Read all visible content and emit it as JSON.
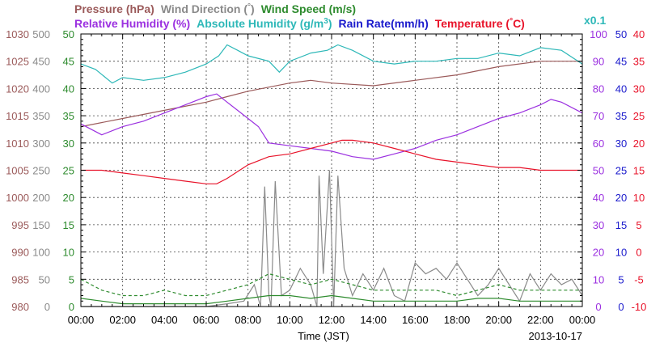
{
  "chart_data": {
    "type": "line",
    "legend": {
      "row1": [
        {
          "text": "Pressure (hPa)",
          "color": "#9b5a5a"
        },
        {
          "text": "Wind Direction (",
          "color": "#8a8a8a"
        },
        {
          "text": "°",
          "color": "#8a8a8a"
        },
        {
          "text": ")",
          "color": "#8a8a8a"
        },
        {
          "text": "Wind Speed (m/s)",
          "color": "#2e8b2e"
        }
      ],
      "row2": [
        {
          "text": "Relative Humidity (%)",
          "color": "#9b30e0"
        },
        {
          "text": "Absolute Humidity (g/m",
          "color": "#2eb8b8"
        },
        {
          "text": "3",
          "color": "#2eb8b8"
        },
        {
          "text": ")",
          "color": "#2eb8b8"
        },
        {
          "text": "Rain Rate(mm/h)",
          "color": "#1a1acc"
        },
        {
          "text": "Temperature (",
          "color": "#e8132a"
        },
        {
          "text": "°",
          "color": "#e8132a"
        },
        {
          "text": "C)",
          "color": "#e8132a"
        }
      ],
      "scale_note": "x0.1"
    },
    "xlabel": "Time (JST)",
    "date": "2013-10-17",
    "x_ticks": [
      "00:00",
      "02:00",
      "04:00",
      "06:00",
      "08:00",
      "10:00",
      "12:00",
      "14:00",
      "16:00",
      "18:00",
      "20:00",
      "22:00",
      "00:00"
    ],
    "axes": [
      {
        "name": "Pressure",
        "color": "#9b5a5a",
        "ticks": [
          "1030",
          "1025",
          "1020",
          "1015",
          "1010",
          "1005",
          "1000",
          "995",
          "990",
          "985",
          "980"
        ],
        "range": [
          980,
          1030
        ]
      },
      {
        "name": "Wind Direction",
        "color": "#8a8a8a",
        "ticks": [
          "500",
          "450",
          "400",
          "350",
          "300",
          "250",
          "200",
          "150",
          "100",
          "50",
          "0"
        ],
        "range": [
          0,
          500
        ]
      },
      {
        "name": "Wind Speed",
        "color": "#2e8b2e",
        "ticks": [
          "50",
          "45",
          "40",
          "35",
          "30",
          "25",
          "20",
          "15",
          "10",
          "5",
          "0"
        ],
        "range": [
          0,
          50
        ]
      },
      {
        "name": "Relative Humidity",
        "color": "#9b30e0",
        "ticks": [
          "100",
          "90",
          "80",
          "70",
          "60",
          "50",
          "40",
          "30",
          "20",
          "10",
          "0"
        ],
        "range": [
          0,
          100
        ]
      },
      {
        "name": "Rain Rate",
        "color": "#1a1acc",
        "ticks": [
          "50",
          "45",
          "40",
          "35",
          "30",
          "25",
          "20",
          "15",
          "10",
          "5",
          "0"
        ],
        "range": [
          0,
          50
        ]
      },
      {
        "name": "Temperature",
        "color": "#e8132a",
        "ticks": [
          "40",
          "35",
          "30",
          "25",
          "20",
          "15",
          "10",
          "5",
          "0",
          "-5",
          "-10"
        ],
        "range": [
          -10,
          40
        ]
      }
    ],
    "grid": true,
    "series": [
      {
        "name": "Pressure",
        "color": "#9b5a5a",
        "x_hours": [
          0,
          2,
          4,
          6,
          7,
          8,
          10,
          11,
          12,
          14,
          16,
          18,
          20,
          22,
          24
        ],
        "y": [
          1013,
          1014.5,
          1016,
          1017.5,
          1018.5,
          1019.5,
          1021,
          1021.5,
          1021,
          1020.5,
          1021.5,
          1022.5,
          1024,
          1025,
          1025
        ]
      },
      {
        "name": "Absolute Humidity",
        "color": "#2eb8b8",
        "x_hours": [
          0,
          0.7,
          1.5,
          2,
          3,
          4,
          5,
          6,
          6.6,
          7,
          7.5,
          8,
          9,
          9.5,
          10,
          11,
          11.8,
          12.3,
          13,
          14,
          15,
          16,
          17,
          18,
          19,
          20,
          21,
          22,
          23,
          24
        ],
        "y": [
          44.5,
          43.5,
          41,
          42,
          41.5,
          42,
          43,
          44.5,
          46,
          48,
          47,
          46,
          45,
          43,
          45,
          46.5,
          47,
          48,
          47,
          45,
          44.5,
          45,
          45,
          45.5,
          45.5,
          46.5,
          46,
          47.5,
          47,
          44.5
        ]
      },
      {
        "name": "Relative Humidity",
        "color": "#9b30e0",
        "x_hours": [
          0,
          1,
          2,
          3,
          4,
          5,
          6,
          6.5,
          7,
          8,
          8.5,
          9,
          10,
          11,
          12,
          13,
          14,
          15,
          16,
          17,
          18,
          19,
          20,
          21,
          22,
          22.5,
          23,
          24
        ],
        "y": [
          67,
          63,
          66,
          68,
          71,
          74,
          77,
          78,
          75,
          69,
          66,
          60,
          59,
          58,
          57,
          55,
          54,
          56,
          58,
          61,
          63,
          66,
          69,
          71,
          74,
          76,
          75,
          71
        ]
      },
      {
        "name": "Temperature",
        "color": "#e8132a",
        "x_hours": [
          0,
          1,
          2,
          3,
          4,
          5,
          6,
          6.5,
          7,
          8,
          9,
          10,
          11,
          12,
          12.5,
          13,
          14,
          15,
          16,
          17,
          18,
          19,
          20,
          21,
          22,
          23,
          24
        ],
        "y": [
          15,
          15,
          14.5,
          14,
          13.5,
          13,
          12.5,
          12.5,
          13.5,
          16,
          17.5,
          18,
          19,
          20,
          20.5,
          20.5,
          20,
          19,
          18,
          17,
          16.5,
          16,
          15.5,
          15.5,
          15,
          15,
          15
        ]
      },
      {
        "name": "Wind Direction",
        "color": "#8a8a8a",
        "x_hours": [
          0,
          2,
          4,
          6,
          7,
          7.8,
          8.3,
          8.6,
          8.8,
          9,
          9.1,
          9.3,
          9.6,
          10,
          10.5,
          11,
          11.3,
          11.4,
          11.6,
          11.9,
          12.1,
          12.3,
          12.6,
          13,
          13.5,
          14,
          14.5,
          15,
          15.5,
          16,
          16.5,
          17,
          17.5,
          18,
          18.5,
          19,
          19.5,
          20,
          20.5,
          21,
          21.5,
          22,
          22.5,
          23,
          23.5,
          24
        ],
        "y": [
          0,
          0,
          0,
          0,
          5,
          10,
          40,
          0,
          220,
          20,
          0,
          230,
          20,
          30,
          70,
          40,
          0,
          240,
          60,
          250,
          0,
          240,
          70,
          20,
          60,
          30,
          70,
          20,
          10,
          80,
          60,
          70,
          50,
          80,
          50,
          20,
          40,
          70,
          40,
          10,
          60,
          30,
          60,
          40,
          50,
          20
        ]
      },
      {
        "name": "Wind Speed (gust)",
        "color": "#2e8b2e",
        "dashed": true,
        "x_hours": [
          0,
          1,
          2,
          3,
          4,
          5,
          6,
          7,
          8,
          9,
          10,
          11,
          12,
          13,
          14,
          15,
          16,
          17,
          18,
          19,
          20,
          21,
          22,
          23,
          24
        ],
        "y": [
          5,
          3,
          2,
          2,
          3,
          2,
          2,
          3,
          4,
          6,
          5,
          4,
          5,
          4,
          3,
          3,
          3,
          3,
          2,
          3,
          4,
          3,
          3,
          3,
          3
        ]
      },
      {
        "name": "Wind Speed",
        "color": "#2e8b2e",
        "x_hours": [
          0,
          1,
          2,
          3,
          4,
          5,
          6,
          7,
          8,
          9,
          10,
          11,
          12,
          13,
          14,
          15,
          16,
          17,
          18,
          19,
          20,
          21,
          22,
          23,
          24
        ],
        "y": [
          1.5,
          1,
          0.5,
          0.5,
          0.5,
          0.5,
          0.5,
          1,
          1.5,
          2,
          2,
          1.5,
          2,
          1.5,
          1,
          1,
          1,
          1,
          1,
          1.5,
          1.5,
          1,
          1,
          1,
          1
        ]
      }
    ]
  }
}
